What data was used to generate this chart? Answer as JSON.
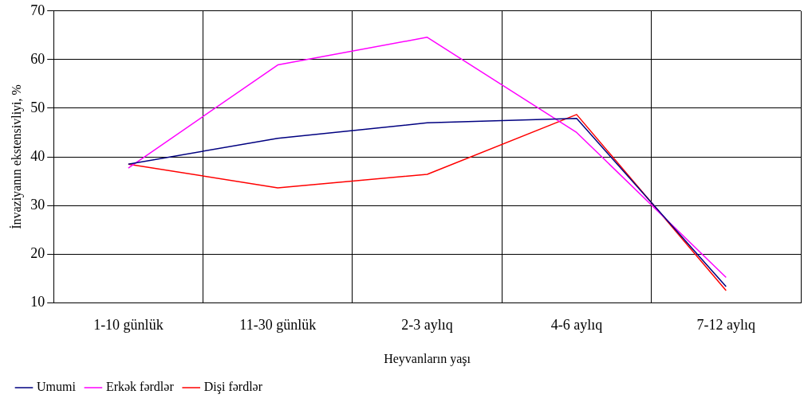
{
  "chart_data": {
    "type": "line",
    "xlabel": "Heyvanların yaşı",
    "ylabel": "İnvaziyanın ekstensivliyi, %",
    "categories": [
      "1-10 günlük",
      "11-30 günlük",
      "2-3 aylıq",
      "4-6 aylıq",
      "7-12 aylıq"
    ],
    "series": [
      {
        "name": "Umumi",
        "color": "#000080",
        "values": [
          38.5,
          43.8,
          47,
          47.9,
          13.3
        ]
      },
      {
        "name": "Erkək fərdlər",
        "color": "#ff00ff",
        "values": [
          37.7,
          58.9,
          64.6,
          45,
          15.2
        ]
      },
      {
        "name": "Dişi fərdlər",
        "color": "#ff0000",
        "values": [
          38.5,
          33.6,
          36.4,
          48.7,
          12.5
        ]
      }
    ],
    "ylim": [
      10,
      70
    ],
    "yticks": [
      10,
      20,
      30,
      40,
      50,
      60,
      70
    ],
    "grid": true,
    "legend": "bottom left",
    "marker": "none",
    "line_style": "solid"
  }
}
